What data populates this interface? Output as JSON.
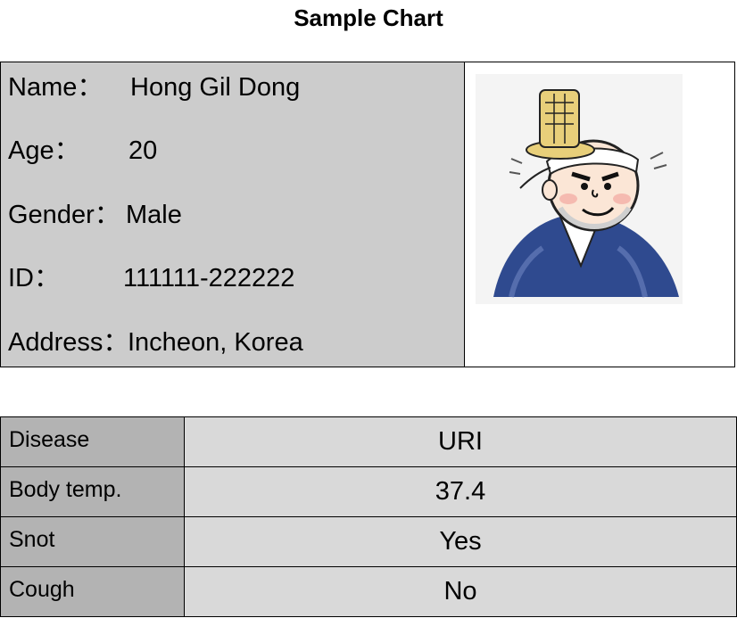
{
  "title": "Sample Chart",
  "patient": {
    "name_label": "Name：",
    "name": "Hong Gil Dong",
    "age_label": "Age：",
    "age": "20",
    "gender_label": "Gender：",
    "gender": "Male",
    "id_label": "ID：",
    "id": "111111-222222",
    "address_label": "Address：",
    "address": "Incheon, Korea"
  },
  "medical": [
    {
      "label": "Disease",
      "value": "URI"
    },
    {
      "label": "Body temp.",
      "value": "37.4"
    },
    {
      "label": "Snot",
      "value": "Yes"
    },
    {
      "label": "Cough",
      "value": "No"
    }
  ],
  "colors": {
    "info_bg": "#cccccc",
    "label_bg": "#b3b3b3",
    "value_bg": "#d9d9d9",
    "vest": "#2f4a8f",
    "hat": "#e8cf7a"
  }
}
